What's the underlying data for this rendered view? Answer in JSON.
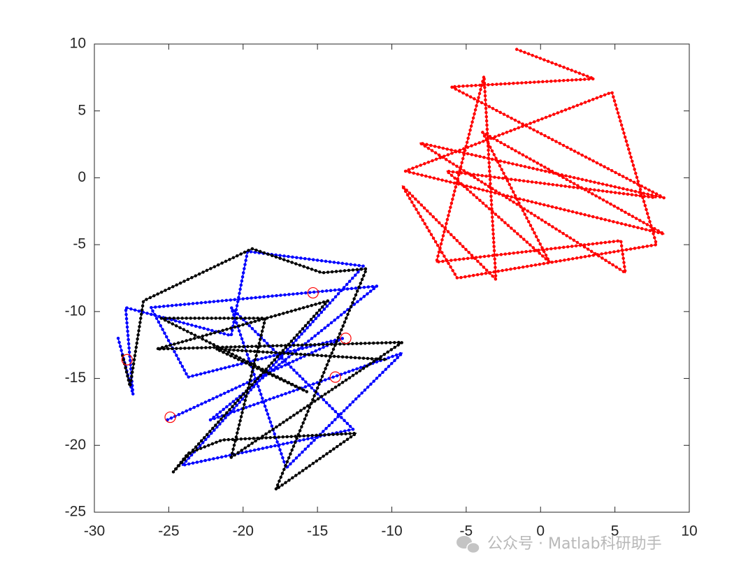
{
  "chart_data": {
    "type": "line",
    "xlim": [
      -30,
      10
    ],
    "ylim": [
      -25,
      10
    ],
    "xticks": [
      -30,
      -25,
      -20,
      -15,
      -10,
      -5,
      0,
      5,
      10
    ],
    "yticks": [
      -25,
      -20,
      -15,
      -10,
      -5,
      0,
      5,
      10
    ],
    "grid": false,
    "series": [
      {
        "color": "#ff0000",
        "mode": "lines+markers",
        "x": [
          -1.6,
          3.6,
          -6.0,
          8.3,
          -8.1,
          5.7,
          5.4,
          -7.0,
          -3.8,
          -3.0,
          -9.3,
          -5.6,
          7.8,
          4.8,
          -9.1,
          8.3,
          -3.9,
          0.6,
          -6.3,
          7.8
        ],
        "y": [
          9.6,
          7.4,
          6.8,
          -1.5,
          2.6,
          -7.1,
          -4.7,
          -6.3,
          7.6,
          -7.6,
          -0.6,
          -7.5,
          -5.0,
          6.4,
          0.5,
          -4.2,
          3.4,
          -6.3,
          0.5,
          -1.5
        ]
      },
      {
        "color": "#0000ff",
        "mode": "lines+markers",
        "x": [
          -28.4,
          -27.4,
          -27.9,
          -20.8,
          -19.7,
          -11.9,
          -24.1,
          -12.6,
          -20.8,
          -17.1,
          -9.3,
          -22.2,
          -11.0,
          -26.2,
          -23.7,
          -13.3,
          -25.1
        ],
        "y": [
          -12.0,
          -16.2,
          -9.7,
          -11.8,
          -5.5,
          -6.6,
          -21.5,
          -18.8,
          -9.7,
          -21.7,
          -13.1,
          -18.1,
          -8.1,
          -9.7,
          -14.9,
          -12.0,
          -18.1
        ]
      },
      {
        "color": "#000000",
        "mode": "lines+markers",
        "x": [
          -28.1,
          -27.6,
          -26.7,
          -19.4,
          -14.7,
          -11.7,
          -17.8,
          -12.4,
          -21.4,
          -23.7,
          -24.7,
          -14.3,
          -25.8,
          -9.3,
          -20.8,
          -18.5,
          -25.5,
          -15.7,
          -21.8,
          -10.3
        ],
        "y": [
          -13.3,
          -15.6,
          -9.2,
          -5.3,
          -7.1,
          -6.8,
          -23.3,
          -19.1,
          -19.6,
          -20.6,
          -22.0,
          -9.2,
          -12.8,
          -12.3,
          -20.9,
          -10.5,
          -10.5,
          -16.0,
          -12.8,
          -13.6
        ]
      },
      {
        "color": "#ff0000",
        "mode": "markers",
        "x": [
          -27.8,
          -24.9,
          -15.3,
          -13.1,
          -13.8
        ],
        "y": [
          -13.6,
          -17.9,
          -8.6,
          -12.0,
          -14.9
        ]
      }
    ]
  },
  "watermark": "公众号 · Matlab科研助手"
}
